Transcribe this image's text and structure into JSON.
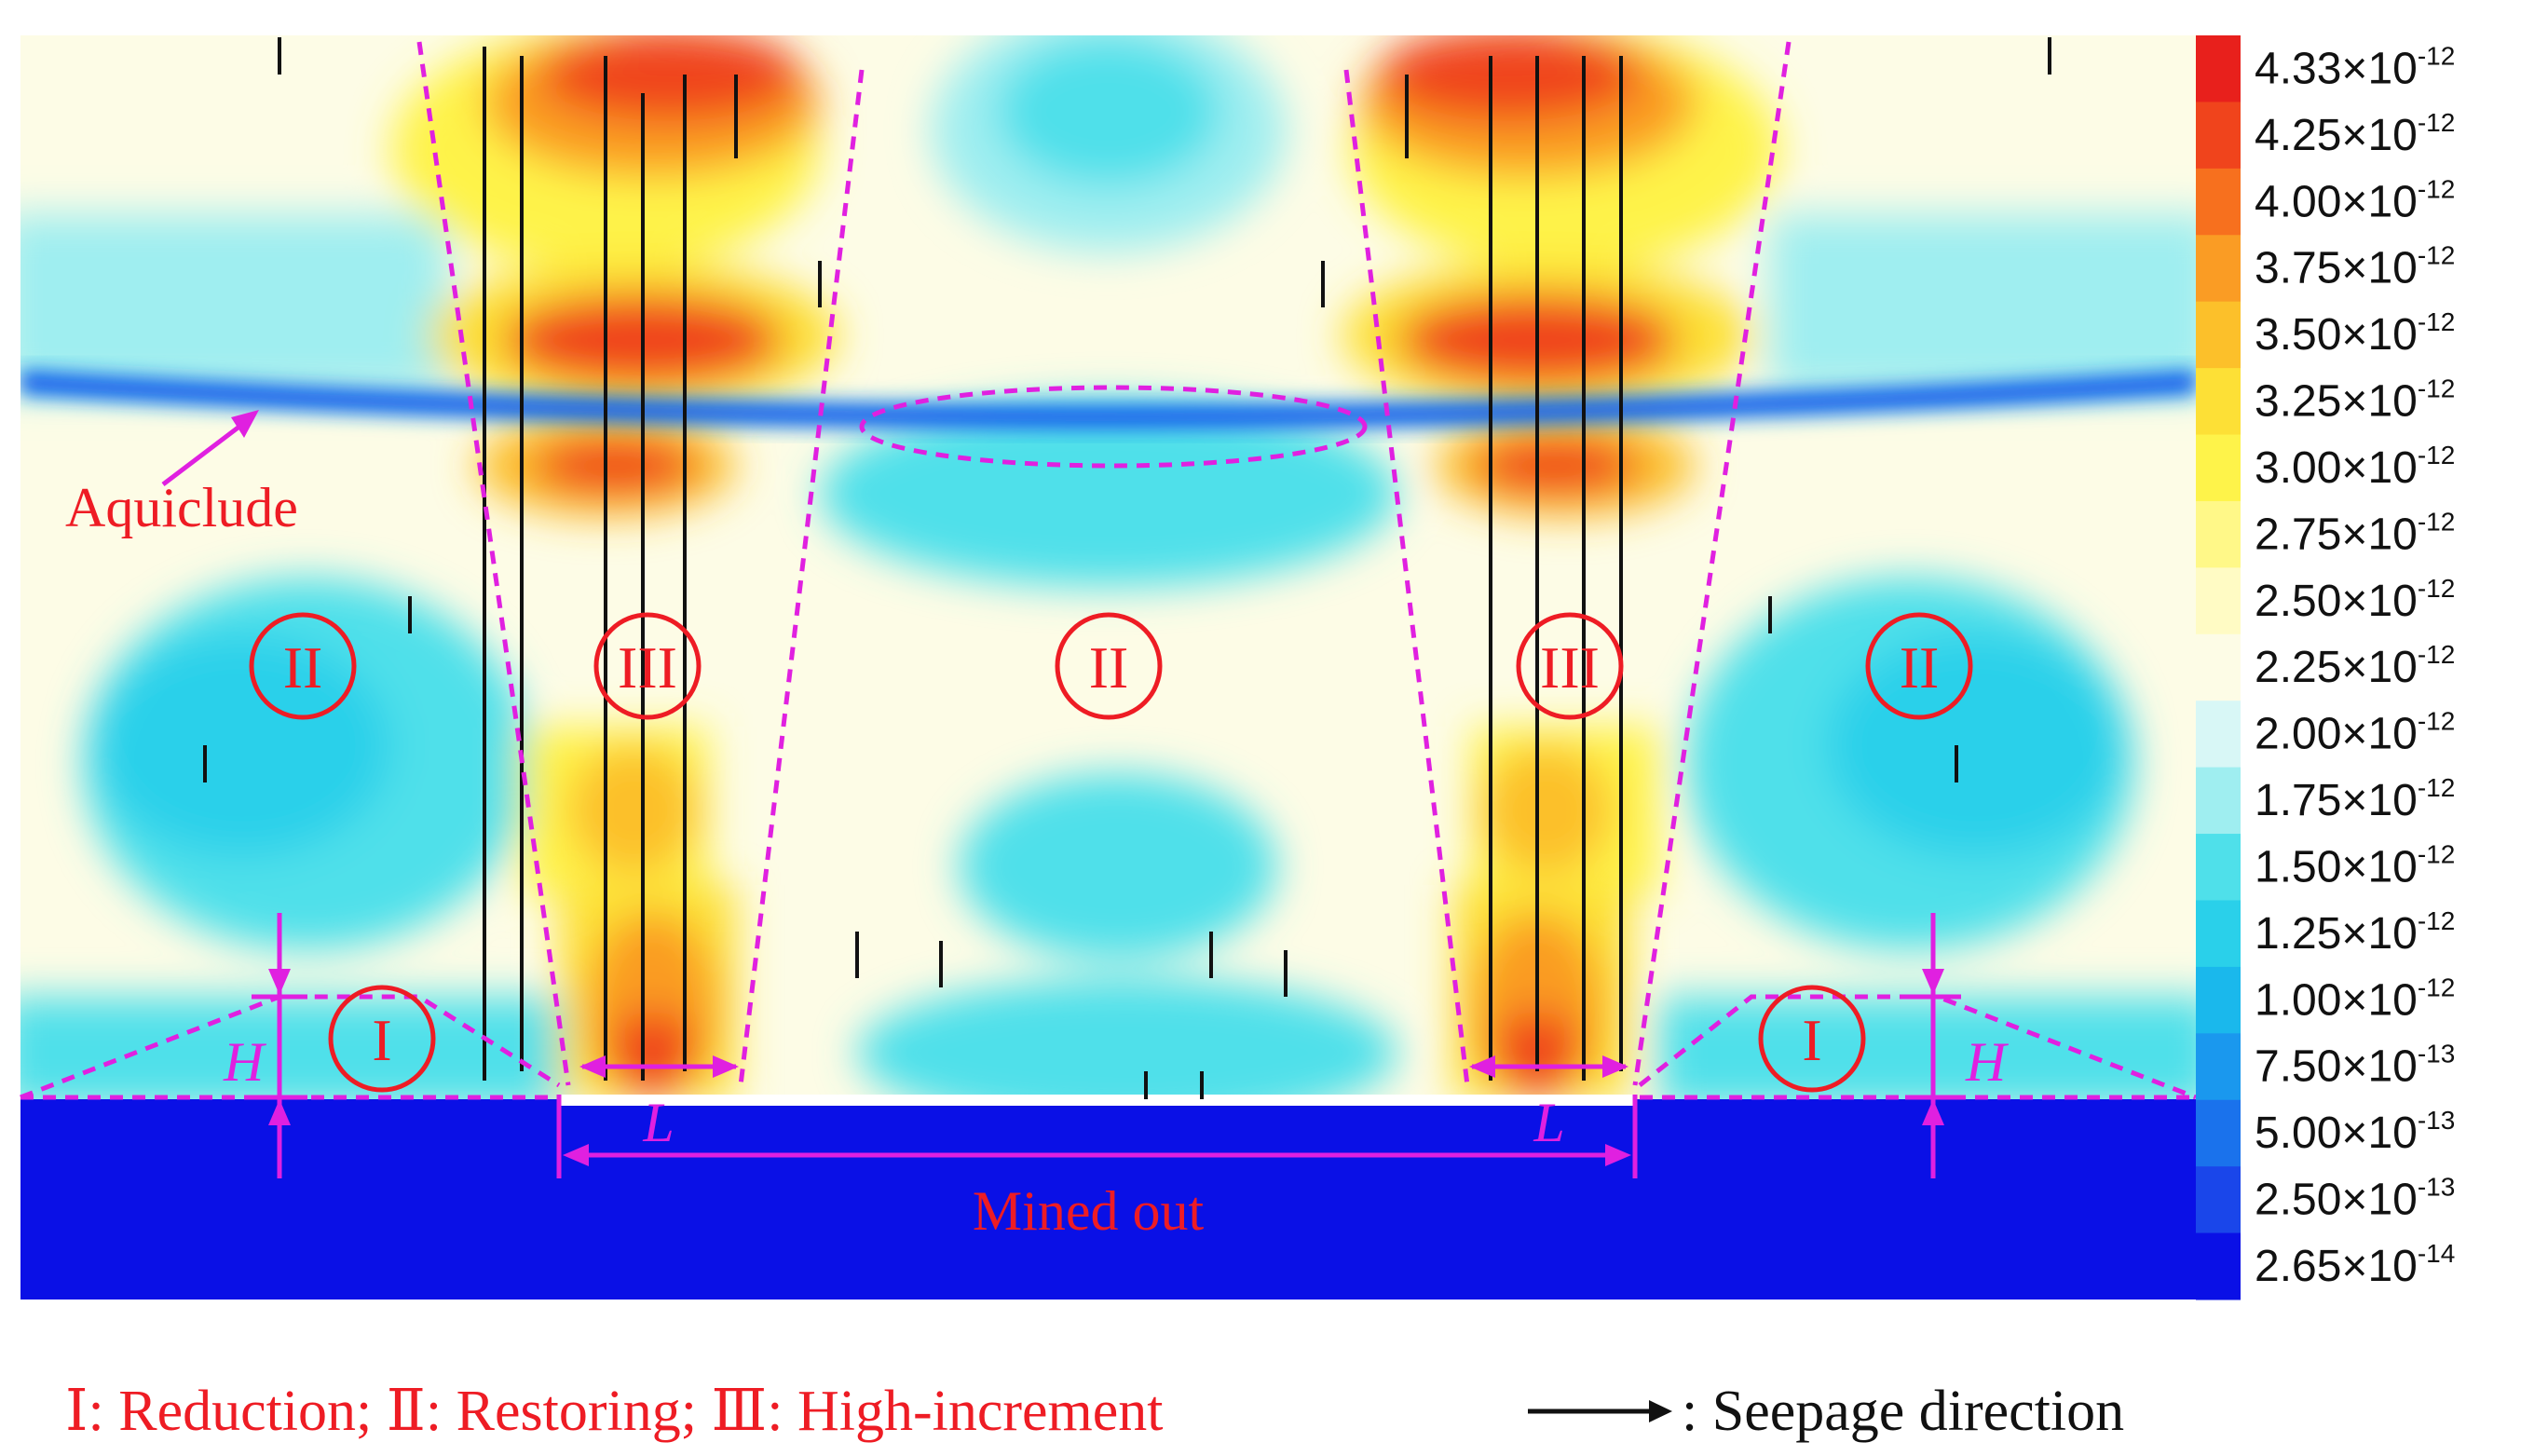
{
  "colors": {
    "magenta": "#e020e0",
    "red": "#ee1c24",
    "mined_out": "#0a10e6",
    "aquiclude": "#1a2fd0"
  },
  "annotations": {
    "aquiclude": "Aquiclude",
    "mined_out": "Mined out",
    "L": "L",
    "H": "H",
    "zone_I": "I",
    "zone_II": "II",
    "zone_III": "III"
  },
  "legend": {
    "color_levels": [
      {
        "mantissa": "4.33",
        "exponent": "-12",
        "color": "#e8201c"
      },
      {
        "mantissa": "4.25",
        "exponent": "-12",
        "color": "#f0441c"
      },
      {
        "mantissa": "4.00",
        "exponent": "-12",
        "color": "#f7701e"
      },
      {
        "mantissa": "3.75",
        "exponent": "-12",
        "color": "#fa9c24"
      },
      {
        "mantissa": "3.50",
        "exponent": "-12",
        "color": "#fcc02a"
      },
      {
        "mantissa": "3.25",
        "exponent": "-12",
        "color": "#fde036"
      },
      {
        "mantissa": "3.00",
        "exponent": "-12",
        "color": "#fef34a"
      },
      {
        "mantissa": "2.75",
        "exponent": "-12",
        "color": "#fff888"
      },
      {
        "mantissa": "2.50",
        "exponent": "-12",
        "color": "#fffbc4"
      },
      {
        "mantissa": "2.25",
        "exponent": "-12",
        "color": "#fdfce6"
      },
      {
        "mantissa": "2.00",
        "exponent": "-12",
        "color": "#d8f7f6"
      },
      {
        "mantissa": "1.75",
        "exponent": "-12",
        "color": "#9feef0"
      },
      {
        "mantissa": "1.50",
        "exponent": "-12",
        "color": "#4fe0ea"
      },
      {
        "mantissa": "1.25",
        "exponent": "-12",
        "color": "#2ad0ea"
      },
      {
        "mantissa": "1.00",
        "exponent": "-12",
        "color": "#1ab8ec"
      },
      {
        "mantissa": "7.50",
        "exponent": "-13",
        "color": "#1a98ee"
      },
      {
        "mantissa": "5.00",
        "exponent": "-13",
        "color": "#1a72ec"
      },
      {
        "mantissa": "2.50",
        "exponent": "-13",
        "color": "#1a46ea"
      },
      {
        "mantissa": "2.65",
        "exponent": "-14",
        "color": "#0a10e6"
      }
    ]
  },
  "caption": {
    "zones_text": "Ⅰ: Reduction;  Ⅱ: Restoring;  Ⅲ: High-increment",
    "seepage_text": ": Seepage direction"
  }
}
